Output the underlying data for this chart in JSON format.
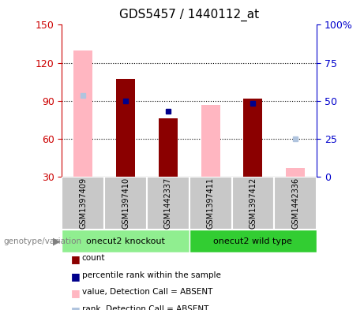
{
  "title": "GDS5457 / 1440112_at",
  "samples": [
    "GSM1397409",
    "GSM1397410",
    "GSM1442337",
    "GSM1397411",
    "GSM1397412",
    "GSM1442336"
  ],
  "count_values": [
    null,
    107,
    76,
    null,
    92,
    null
  ],
  "count_absent_values": [
    130,
    null,
    null,
    87,
    null,
    37
  ],
  "rank_values_left": [
    null,
    90,
    82,
    null,
    88,
    null
  ],
  "rank_absent_values_left": [
    94,
    null,
    null,
    null,
    null,
    60
  ],
  "ylim_left": [
    30,
    150
  ],
  "ylim_right": [
    0,
    100
  ],
  "yticks_left": [
    30,
    60,
    90,
    120,
    150
  ],
  "yticks_right": [
    0,
    25,
    50,
    75,
    100
  ],
  "ytick_labels_left": [
    "30",
    "60",
    "90",
    "120",
    "150"
  ],
  "ytick_labels_right": [
    "0",
    "25",
    "50",
    "75",
    "100%"
  ],
  "hlines": [
    60,
    90,
    120
  ],
  "bar_width": 0.45,
  "count_color": "#8B0000",
  "count_absent_color": "#FFB6C1",
  "rank_color": "#00008B",
  "rank_absent_color": "#B0C4DE",
  "left_tick_color": "#CC0000",
  "right_tick_color": "#0000CC",
  "group1_label": "onecut2 knockout",
  "group2_label": "onecut2 wild type",
  "group1_color": "#90EE90",
  "group2_color": "#32CD32",
  "sample_box_color": "#C8C8C8",
  "legend_items": [
    {
      "label": "count",
      "color": "#8B0000"
    },
    {
      "label": "percentile rank within the sample",
      "color": "#00008B"
    },
    {
      "label": "value, Detection Call = ABSENT",
      "color": "#FFB6C1"
    },
    {
      "label": "rank, Detection Call = ABSENT",
      "color": "#B0C4DE"
    }
  ]
}
